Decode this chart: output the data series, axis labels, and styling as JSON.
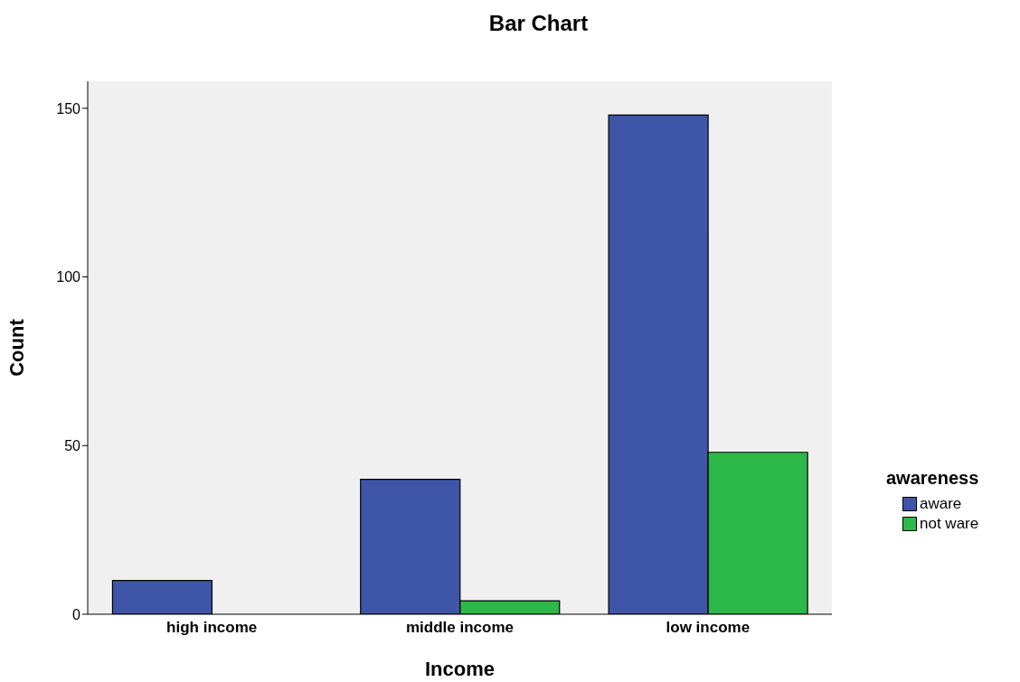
{
  "chart_data": {
    "type": "bar",
    "title": "Bar Chart",
    "xlabel": "Income",
    "ylabel": "Count",
    "legend_title": "awareness",
    "categories": [
      "high income",
      "middle income",
      "low income"
    ],
    "series": [
      {
        "name": "aware",
        "color": "#3f55a8",
        "values": [
          10,
          40,
          148
        ]
      },
      {
        "name": "not ware",
        "color": "#2db84a",
        "values": [
          0,
          4,
          48
        ]
      }
    ],
    "ylim": [
      0,
      158
    ],
    "yticks": [
      0,
      50,
      100,
      150
    ],
    "grid": false,
    "legend": "right"
  }
}
